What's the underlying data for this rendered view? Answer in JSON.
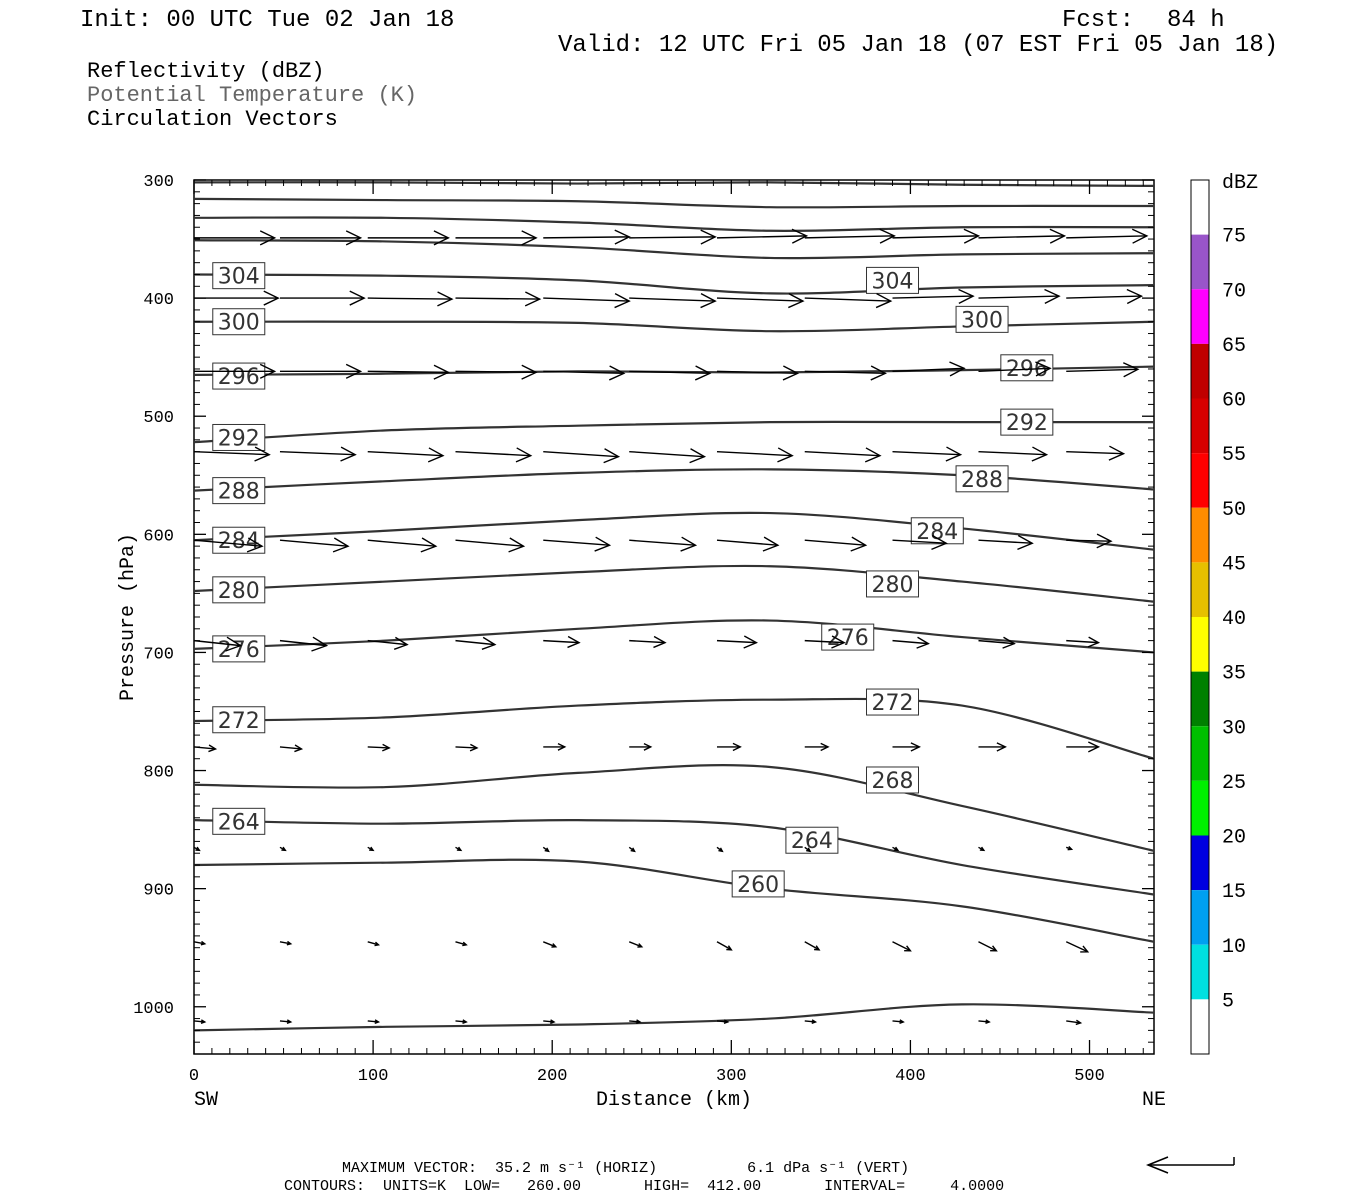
{
  "header": {
    "init": "Init: 00 UTC Tue 02 Jan 18",
    "fcst_label": "Fcst:",
    "fcst_value": "84 h",
    "valid": "Valid: 12 UTC Fri 05 Jan 18 (07 EST Fri 05 Jan 18)"
  },
  "legend": {
    "reflectivity": "Reflectivity (dBZ)",
    "theta": "Potential Temperature (K)",
    "vectors": "Circulation Vectors"
  },
  "colors": {
    "contour": "#333333",
    "theta_legend_text": "#666666",
    "frame": "#000000"
  },
  "chart_data": {
    "type": "cross-section",
    "xlabel": "Distance (km)",
    "ylabel": "Pressure (hPa)",
    "x_left_label": "SW",
    "x_right_label": "NE",
    "xlim": [
      0,
      536
    ],
    "ylim": [
      1040,
      300
    ],
    "x_ticks": [
      "0",
      "100",
      "200",
      "300",
      "400",
      "500"
    ],
    "x_tick_values": [
      0,
      100,
      200,
      300,
      400,
      500
    ],
    "y_ticks": [
      "300",
      "400",
      "500",
      "600",
      "700",
      "800",
      "900",
      "1000"
    ],
    "y_tick_values": [
      300,
      400,
      500,
      600,
      700,
      800,
      900,
      1000
    ],
    "colorbar": {
      "title": "dBZ",
      "labels": [
        "5",
        "10",
        "15",
        "20",
        "25",
        "30",
        "35",
        "40",
        "45",
        "50",
        "55",
        "60",
        "65",
        "70",
        "75"
      ],
      "colors": [
        "#ffffff",
        "#00e0e0",
        "#00a0f0",
        "#0000e0",
        "#00f000",
        "#00c000",
        "#008000",
        "#ffff00",
        "#e6c000",
        "#ff8c00",
        "#ff0000",
        "#d60000",
        "#c00000",
        "#ff00ff",
        "#9955c9",
        "#ffffff"
      ]
    },
    "theta_contours": [
      {
        "p": [
          302,
          302,
          303,
          302,
          304,
          305
        ],
        "show_label": false
      },
      {
        "p": [
          316,
          317,
          318,
          323,
          322,
          322
        ],
        "show_label": false
      },
      {
        "p": [
          332,
          332,
          336,
          343,
          340,
          340
        ],
        "show_label": false
      },
      {
        "p": [
          351,
          352,
          357,
          366,
          363,
          362
        ],
        "show_label": false
      },
      {
        "p": [
          380,
          381,
          385,
          396,
          391,
          389
        ],
        "label": "304",
        "label_at": [
          [
            25,
            381
          ],
          [
            390,
            385
          ]
        ]
      },
      {
        "p": [
          420,
          420,
          421,
          428,
          424,
          420
        ],
        "label": "300",
        "label_at": [
          [
            25,
            420
          ],
          [
            440,
            418
          ]
        ]
      },
      {
        "p": [
          465,
          464,
          462,
          463,
          461,
          458
        ],
        "label": "296",
        "label_at": [
          [
            25,
            466
          ],
          [
            465,
            459
          ]
        ]
      },
      {
        "p": [
          522,
          512,
          508,
          505,
          505,
          505
        ],
        "label": "292",
        "label_at": [
          [
            25,
            518
          ],
          [
            465,
            505
          ]
        ]
      },
      {
        "p": [
          563,
          555,
          548,
          545,
          550,
          562
        ],
        "label": "288",
        "label_at": [
          [
            25,
            563
          ],
          [
            440,
            553
          ]
        ]
      },
      {
        "p": [
          605,
          597,
          588,
          582,
          595,
          613
        ],
        "label": "284",
        "label_at": [
          [
            25,
            605
          ],
          [
            415,
            597
          ]
        ]
      },
      {
        "p": [
          648,
          640,
          632,
          627,
          640,
          657
        ],
        "label": "280",
        "label_at": [
          [
            25,
            647
          ],
          [
            390,
            642
          ]
        ]
      },
      {
        "p": [
          697,
          690,
          680,
          673,
          687,
          700
        ],
        "label": "276",
        "label_at": [
          [
            25,
            697
          ],
          [
            365,
            687
          ]
        ]
      },
      {
        "p": [
          758,
          755,
          745,
          740,
          745,
          790
        ],
        "label": "272",
        "label_at": [
          [
            25,
            757
          ],
          [
            390,
            742
          ]
        ]
      },
      {
        "p": [
          812,
          814,
          802,
          797,
          830,
          868
        ],
        "label": "268",
        "label_at": [
          [
            390,
            808
          ]
        ]
      },
      {
        "p": [
          842,
          845,
          842,
          848,
          880,
          905
        ],
        "label": "264",
        "label_at": [
          [
            25,
            843
          ],
          [
            345,
            859
          ]
        ]
      },
      {
        "p": [
          880,
          878,
          877,
          900,
          915,
          945
        ],
        "label": "260",
        "label_at": [
          [
            315,
            896
          ]
        ]
      },
      {
        "p": [
          1020,
          1017,
          1015,
          1010,
          998,
          1005
        ],
        "show_label": false
      }
    ],
    "vector_rows": [
      {
        "p": 349,
        "dp": [
          0,
          0,
          -1,
          -2,
          -2,
          -2
        ],
        "len_km": [
          45,
          45,
          48,
          50,
          48,
          45
        ]
      },
      {
        "p": 400,
        "dp": [
          0,
          1,
          3,
          3,
          -2,
          -2
        ],
        "len_km": [
          47,
          47,
          48,
          48,
          45,
          42
        ]
      },
      {
        "p": 462,
        "dp": [
          0,
          1,
          2,
          2,
          -3,
          -2
        ],
        "len_km": [
          45,
          45,
          45,
          45,
          40,
          40
        ]
      },
      {
        "p": 530,
        "dp": [
          3,
          4,
          5,
          4,
          3,
          2
        ],
        "len_km": [
          42,
          42,
          42,
          42,
          38,
          32
        ]
      },
      {
        "p": 605,
        "dp": [
          6,
          6,
          5,
          5,
          3,
          1
        ],
        "len_km": [
          38,
          38,
          37,
          34,
          30,
          25
        ]
      },
      {
        "p": 690,
        "dp": [
          5,
          4,
          2,
          2,
          3,
          2
        ],
        "len_km": [
          26,
          22,
          20,
          22,
          20,
          18
        ]
      },
      {
        "p": 780,
        "dp": [
          2,
          1,
          0,
          0,
          0,
          0
        ],
        "len_km": [
          12,
          12,
          12,
          13,
          15,
          18
        ]
      },
      {
        "p": 865,
        "dp": [
          3,
          3,
          4,
          4,
          3,
          2
        ],
        "len_km": [
          3,
          3,
          3,
          3,
          3,
          3
        ]
      },
      {
        "p": 945,
        "dp": [
          2,
          3,
          5,
          8,
          9,
          10
        ],
        "len_km": [
          6,
          6,
          7,
          8,
          10,
          12
        ]
      },
      {
        "p": 1012,
        "dp": [
          1,
          1,
          1,
          1,
          1,
          2
        ],
        "len_km": [
          6,
          6,
          6,
          6,
          6,
          8
        ]
      }
    ],
    "vector_x_km": [
      0,
      48,
      97,
      146,
      195,
      243,
      292,
      341,
      390,
      438,
      487,
      536
    ]
  },
  "footer": {
    "max_vector": "MAXIMUM VECTOR:  35.2 m s⁻¹ (HORIZ)          6.1 dPa s⁻¹ (VERT)",
    "contours": "CONTOURS:  UNITS=K  LOW=   260.00       HIGH=  412.00       INTERVAL=     4.0000"
  }
}
